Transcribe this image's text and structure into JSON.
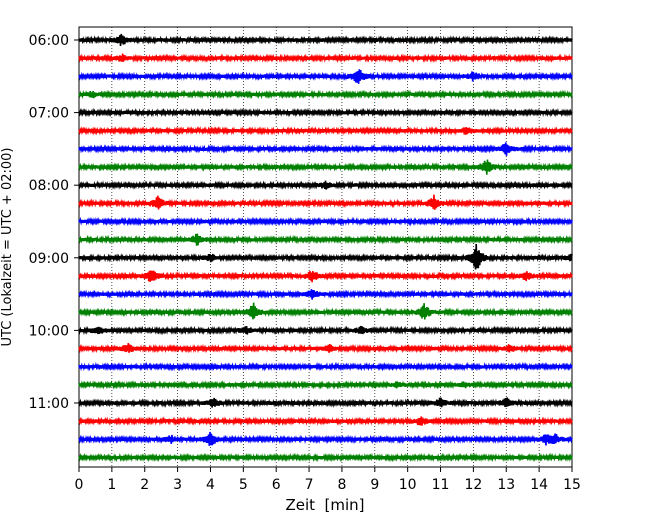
{
  "chart_data": {
    "type": "line",
    "title": "",
    "xlabel": "Zeit  [min]",
    "ylabel": "UTC (Lokalzeit = UTC + 02:00)",
    "xlim": [
      0,
      15
    ],
    "x_ticks": [
      "0",
      "1",
      "2",
      "3",
      "4",
      "5",
      "6",
      "7",
      "8",
      "9",
      "10",
      "11",
      "12",
      "13",
      "14",
      "15"
    ],
    "y_ticks": [
      "06:00",
      "07:00",
      "08:00",
      "09:00",
      "10:00",
      "11:00"
    ],
    "grid": "vertical-dotted",
    "colors": [
      "#000000",
      "#ff0000",
      "#0000ff",
      "#008000"
    ],
    "series": [
      {
        "start": "06:00",
        "color": "#000000",
        "events": [
          [
            1.3,
            0.6
          ]
        ]
      },
      {
        "start": "06:15",
        "color": "#ff0000",
        "events": [
          [
            1.3,
            0.4
          ]
        ]
      },
      {
        "start": "06:30",
        "color": "#0000ff",
        "events": [
          [
            8.5,
            1.0
          ],
          [
            12.0,
            0.5
          ]
        ]
      },
      {
        "start": "06:45",
        "color": "#008000",
        "events": [
          [
            0.4,
            0.3
          ]
        ]
      },
      {
        "start": "07:00",
        "color": "#000000",
        "events": []
      },
      {
        "start": "07:15",
        "color": "#ff0000",
        "events": [
          [
            11.8,
            0.4
          ]
        ]
      },
      {
        "start": "07:30",
        "color": "#0000ff",
        "events": [
          [
            13.0,
            0.7
          ]
        ]
      },
      {
        "start": "07:45",
        "color": "#008000",
        "events": [
          [
            12.4,
            0.9
          ]
        ]
      },
      {
        "start": "08:00",
        "color": "#000000",
        "events": [
          [
            7.5,
            0.4
          ]
        ]
      },
      {
        "start": "08:15",
        "color": "#ff0000",
        "events": [
          [
            2.4,
            0.8
          ],
          [
            10.8,
            0.8
          ]
        ]
      },
      {
        "start": "08:30",
        "color": "#0000ff",
        "events": []
      },
      {
        "start": "08:45",
        "color": "#008000",
        "events": [
          [
            3.6,
            0.7
          ]
        ]
      },
      {
        "start": "09:00",
        "color": "#000000",
        "events": [
          [
            12.1,
            1.6
          ],
          [
            4.0,
            0.4
          ],
          [
            15.0,
            0.4
          ]
        ]
      },
      {
        "start": "09:15",
        "color": "#ff0000",
        "events": [
          [
            2.2,
            0.8
          ],
          [
            7.1,
            0.7
          ],
          [
            13.6,
            0.5
          ]
        ]
      },
      {
        "start": "09:30",
        "color": "#0000ff",
        "events": [
          [
            7.1,
            0.5
          ]
        ]
      },
      {
        "start": "09:45",
        "color": "#008000",
        "events": [
          [
            5.3,
            1.0
          ],
          [
            10.5,
            0.9
          ]
        ]
      },
      {
        "start": "10:00",
        "color": "#000000",
        "events": [
          [
            0.6,
            0.4
          ],
          [
            5.1,
            0.4
          ],
          [
            8.6,
            0.4
          ]
        ]
      },
      {
        "start": "10:15",
        "color": "#ff0000",
        "events": [
          [
            1.5,
            0.5
          ],
          [
            7.6,
            0.4
          ],
          [
            13.1,
            0.4
          ]
        ]
      },
      {
        "start": "10:30",
        "color": "#0000ff",
        "events": []
      },
      {
        "start": "10:45",
        "color": "#008000",
        "events": [
          [
            9.7,
            0.3
          ],
          [
            11.7,
            0.3
          ]
        ]
      },
      {
        "start": "11:00",
        "color": "#000000",
        "events": [
          [
            4.1,
            0.5
          ],
          [
            13.0,
            0.6
          ],
          [
            11.0,
            0.5
          ]
        ]
      },
      {
        "start": "11:15",
        "color": "#ff0000",
        "events": [
          [
            10.4,
            0.5
          ]
        ]
      },
      {
        "start": "11:30",
        "color": "#0000ff",
        "events": [
          [
            4.0,
            0.8
          ],
          [
            2.8,
            0.4
          ],
          [
            14.2,
            0.5
          ],
          [
            14.5,
            0.5
          ]
        ]
      },
      {
        "start": "11:45",
        "color": "#008000",
        "events": []
      }
    ]
  }
}
